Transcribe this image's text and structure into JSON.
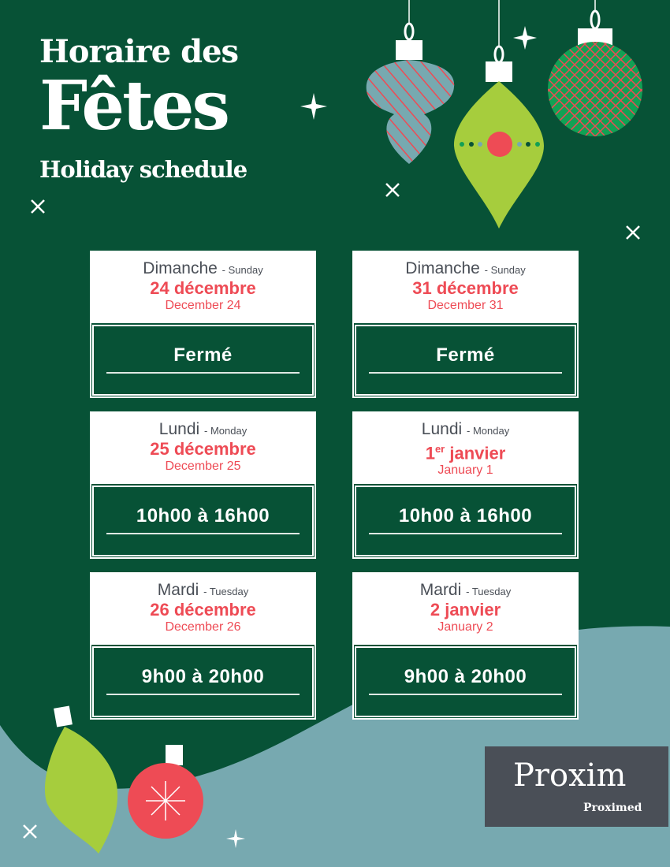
{
  "header": {
    "title_line1": "Horaire des",
    "title_line2": "Fêtes",
    "title_line3": "Holiday schedule"
  },
  "colors": {
    "background": "#075236",
    "accent": "#ee4b55",
    "wave": "#77a9b0",
    "card": "#ffffff",
    "lime": "#a6cd3d"
  },
  "cards": [
    {
      "day_fr": "Dimanche",
      "day_en": "- Sunday",
      "date_fr": "24 décembre",
      "date_fr_sup": "",
      "date_en": "December 24",
      "hours": "Fermé"
    },
    {
      "day_fr": "Dimanche",
      "day_en": "- Sunday",
      "date_fr": "31 décembre",
      "date_fr_sup": "",
      "date_en": "December 31",
      "hours": "Fermé"
    },
    {
      "day_fr": "Lundi",
      "day_en": "- Monday",
      "date_fr": "25 décembre",
      "date_fr_sup": "",
      "date_en": "December 25",
      "hours": "10h00 à 16h00"
    },
    {
      "day_fr": "Lundi",
      "day_en": "- Monday",
      "date_fr": "1",
      "date_fr_sup": "er",
      "date_fr_rest": " janvier",
      "date_en": "January 1",
      "hours": "10h00 à 16h00"
    },
    {
      "day_fr": "Mardi",
      "day_en": "- Tuesday",
      "date_fr": "26 décembre",
      "date_fr_sup": "",
      "date_en": "December 26",
      "hours": "9h00 à 20h00"
    },
    {
      "day_fr": "Mardi",
      "day_en": "- Tuesday",
      "date_fr": "2 janvier",
      "date_fr_sup": "",
      "date_en": "January 2",
      "hours": "9h00 à 20h00"
    }
  ],
  "logo": {
    "brand": "Proxim",
    "sub_brand": "Proximed"
  }
}
